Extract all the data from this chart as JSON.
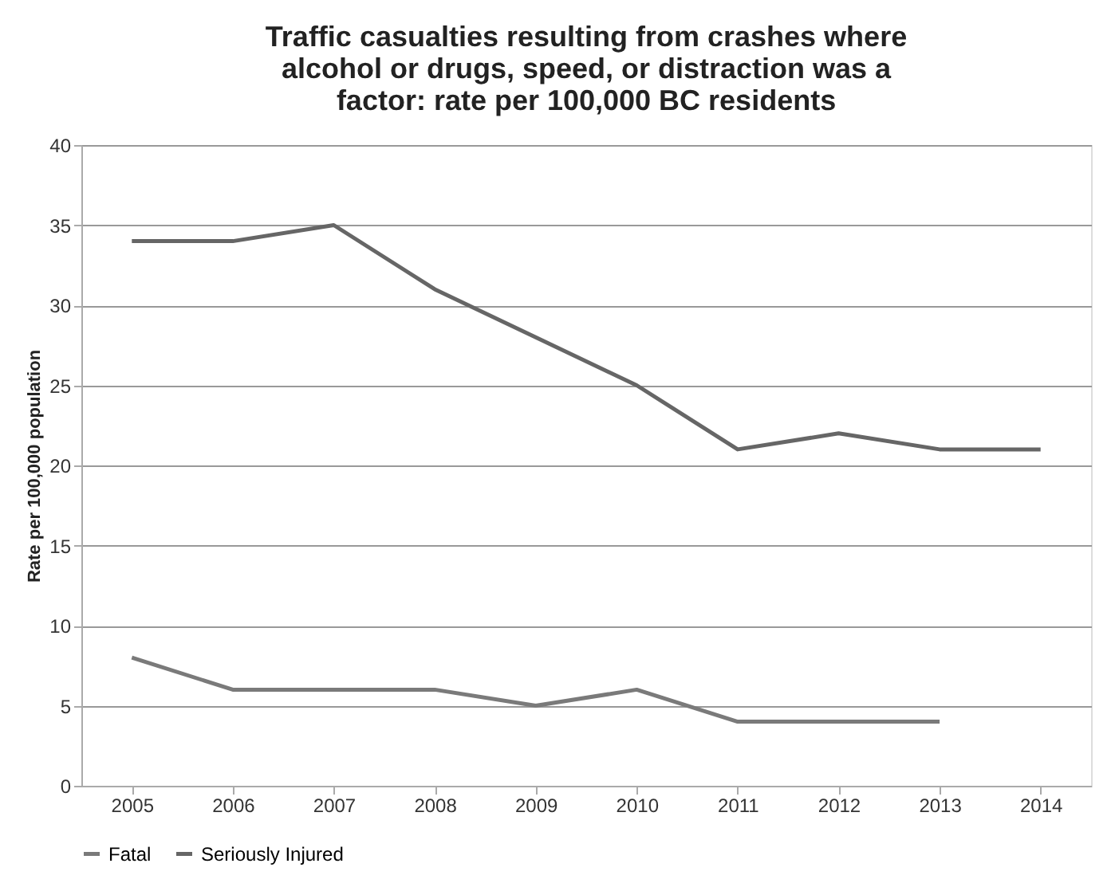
{
  "chart_data": {
    "type": "line",
    "title": [
      "Traffic casualties resulting from crashes where",
      "alcohol or drugs, speed, or distraction was a",
      "factor: rate per 100,000 BC residents"
    ],
    "ylabel": "Rate per 100,000 population",
    "categories": [
      "2005",
      "2006",
      "2007",
      "2008",
      "2009",
      "2010",
      "2011",
      "2012",
      "2013",
      "2014"
    ],
    "series": [
      {
        "name": "Fatal",
        "color": "#7a7a7a",
        "values": [
          8,
          6,
          6,
          6,
          5,
          6,
          4,
          4,
          4,
          null
        ]
      },
      {
        "name": "Seriously Injured",
        "color": "#666666",
        "values": [
          34,
          34,
          35,
          31,
          28,
          25,
          21,
          22,
          21,
          21
        ]
      }
    ],
    "ylim": [
      0,
      40
    ],
    "yticks": [
      0,
      5,
      10,
      15,
      20,
      25,
      30,
      35,
      40
    ],
    "grid": "y",
    "legend": "bottom",
    "marker": "none",
    "line_style": "solid"
  }
}
